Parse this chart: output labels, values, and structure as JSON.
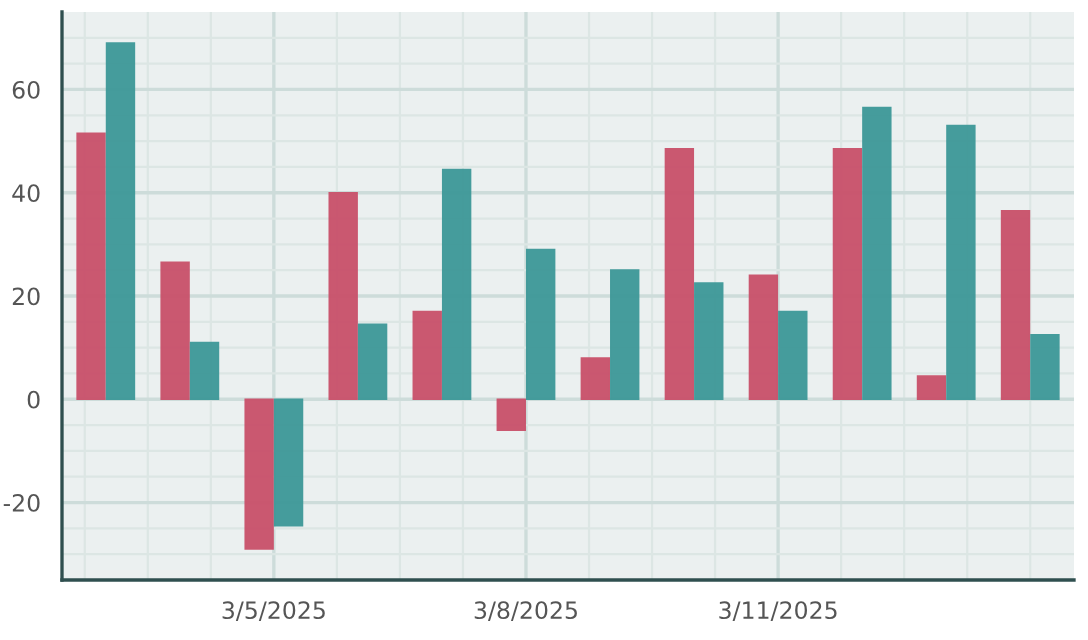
{
  "chart_data": {
    "type": "bar",
    "x": [
      "2025-03-03",
      "2025-03-04",
      "2025-03-05",
      "2025-03-06",
      "2025-03-07",
      "2025-03-08",
      "2025-03-09",
      "2025-03-10",
      "2025-03-11",
      "2025-03-12",
      "2025-03-13",
      "2025-03-14"
    ],
    "series": [
      {
        "color": "#c9506a",
        "values": [
          51.5,
          26.5,
          -29,
          40,
          17,
          -6,
          8,
          48.5,
          24,
          48.5,
          4.5,
          36.5
        ]
      },
      {
        "color": "#3d9898",
        "values": [
          69,
          11,
          -24.5,
          14.5,
          44.5,
          29,
          25,
          22.5,
          17,
          56.5,
          53,
          12.5
        ]
      }
    ],
    "xlim": [
      "2025-03-02T11:30",
      "2025-03-14T12:30"
    ],
    "xticks": [
      {
        "value": "2025-03-02T18:00",
        "label": null
      },
      {
        "value": "2025-03-03T12:00",
        "label": null
      },
      {
        "value": "2025-03-04T06:00",
        "label": null
      },
      {
        "value": "2025-03-05",
        "label": "3/5/2025"
      },
      {
        "value": "2025-03-05T18:00",
        "label": null
      },
      {
        "value": "2025-03-06T12:00",
        "label": null
      },
      {
        "value": "2025-03-07T06:00",
        "label": null
      },
      {
        "value": "2025-03-08",
        "label": "3/8/2025"
      },
      {
        "value": "2025-03-08T18:00",
        "label": null
      },
      {
        "value": "2025-03-09T12:00",
        "label": null
      },
      {
        "value": "2025-03-10T06:00",
        "label": null
      },
      {
        "value": "2025-03-11",
        "label": "3/11/2025"
      },
      {
        "value": "2025-03-11T18:00",
        "label": null
      },
      {
        "value": "2025-03-12T12:00",
        "label": null
      },
      {
        "value": "2025-03-13T06:00",
        "label": null
      },
      {
        "value": "2025-03-14",
        "label": null
      }
    ],
    "ylim": [
      -35,
      75
    ],
    "yticks": [
      {
        "value": -30,
        "label": null
      },
      {
        "value": -25,
        "label": null
      },
      {
        "value": -20,
        "label": "-20"
      },
      {
        "value": -15,
        "label": null
      },
      {
        "value": -10,
        "label": null
      },
      {
        "value": -5,
        "label": null
      },
      0,
      {
        "value": 5,
        "label": null
      },
      {
        "value": 10,
        "label": null
      },
      {
        "value": 15,
        "label": null
      },
      20,
      {
        "value": 25,
        "label": null
      },
      {
        "value": 30,
        "label": null
      },
      {
        "value": 35,
        "label": null
      },
      40,
      {
        "value": 45,
        "label": null
      },
      {
        "value": 50,
        "label": null
      },
      {
        "value": 55,
        "label": null
      },
      60,
      {
        "value": 65,
        "label": null
      },
      {
        "value": 70,
        "label": null
      }
    ],
    "grid": true
  }
}
